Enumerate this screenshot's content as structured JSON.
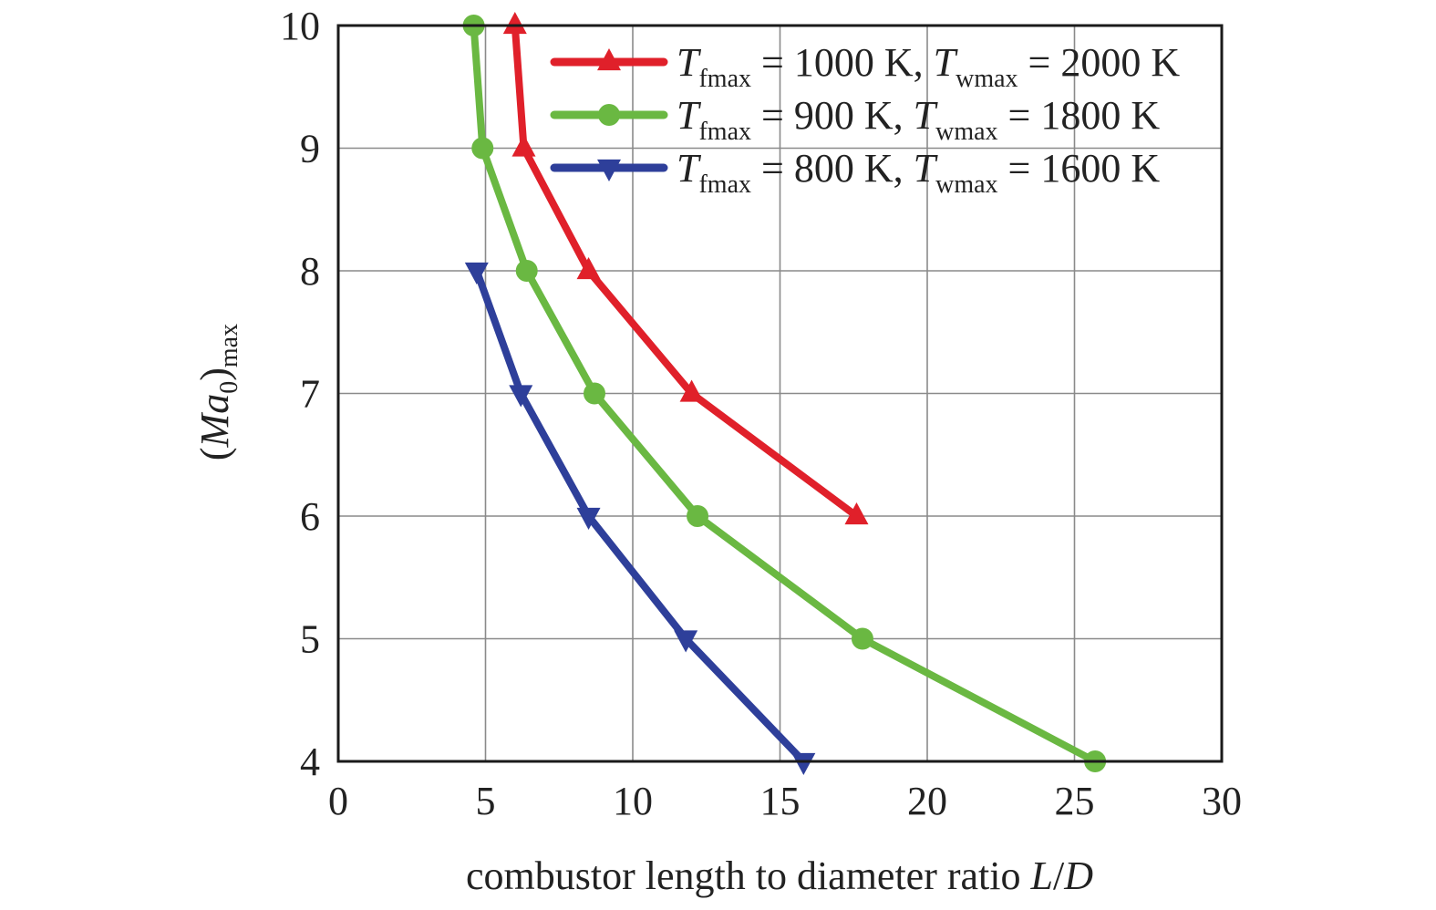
{
  "chart_data": {
    "type": "line",
    "xlabel": "combustor length to diameter ratio L/D",
    "ylabel": "(Ma0)max",
    "xlim": [
      0,
      30
    ],
    "ylim": [
      4,
      10
    ],
    "xticks": [
      "0",
      "5",
      "10",
      "15",
      "20",
      "25",
      "30"
    ],
    "yticks": [
      "4",
      "5",
      "6",
      "7",
      "8",
      "9",
      "10"
    ],
    "grid": true,
    "legend_position": "top-right",
    "series": [
      {
        "name": "Tfmax = 1000 K, Twmax = 2000 K",
        "legend": {
          "T1": "T",
          "sub1": "fmax",
          "mid": " = 1000 K, ",
          "T2": "T",
          "sub2": "wmax",
          "end": " = 2000 K"
        },
        "color": "#e0202a",
        "marker": "triangle-up",
        "points": [
          [
            6.0,
            10
          ],
          [
            6.3,
            9
          ],
          [
            8.5,
            8
          ],
          [
            12.0,
            7
          ],
          [
            17.6,
            6
          ]
        ]
      },
      {
        "name": "Tfmax = 900 K, Twmax = 1800 K",
        "legend": {
          "T1": "T",
          "sub1": "fmax",
          "mid": " = 900 K, ",
          "T2": "T",
          "sub2": "wmax",
          "end": " = 1800 K"
        },
        "color": "#6ab842",
        "marker": "circle",
        "points": [
          [
            4.6,
            10
          ],
          [
            4.9,
            9
          ],
          [
            6.4,
            8
          ],
          [
            8.7,
            7
          ],
          [
            12.2,
            6
          ],
          [
            17.8,
            5
          ],
          [
            25.7,
            4
          ]
        ]
      },
      {
        "name": "Tfmax = 800 K, Twmax = 1600 K",
        "legend": {
          "T1": "T",
          "sub1": "fmax",
          "mid": " = 800 K, ",
          "T2": "T",
          "sub2": "wmax",
          "end": " = 1600 K"
        },
        "color": "#2e3f9a",
        "marker": "triangle-down",
        "points": [
          [
            4.7,
            8
          ],
          [
            6.2,
            7
          ],
          [
            8.5,
            6
          ],
          [
            11.8,
            5
          ],
          [
            15.8,
            4
          ]
        ]
      }
    ]
  }
}
